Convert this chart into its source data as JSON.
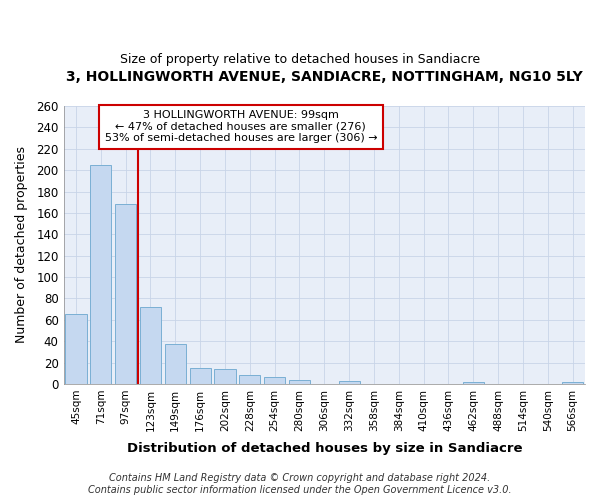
{
  "title": "3, HOLLINGWORTH AVENUE, SANDIACRE, NOTTINGHAM, NG10 5LY",
  "subtitle": "Size of property relative to detached houses in Sandiacre",
  "xlabel": "Distribution of detached houses by size in Sandiacre",
  "ylabel": "Number of detached properties",
  "categories": [
    "45sqm",
    "71sqm",
    "97sqm",
    "123sqm",
    "149sqm",
    "176sqm",
    "202sqm",
    "228sqm",
    "254sqm",
    "280sqm",
    "306sqm",
    "332sqm",
    "358sqm",
    "384sqm",
    "410sqm",
    "436sqm",
    "462sqm",
    "488sqm",
    "514sqm",
    "540sqm",
    "566sqm"
  ],
  "values": [
    65,
    205,
    168,
    72,
    37,
    15,
    14,
    8,
    6,
    4,
    0,
    3,
    0,
    0,
    0,
    0,
    2,
    0,
    0,
    0,
    2
  ],
  "bar_color": "#c5d8f0",
  "bar_edge_color": "#7aafd4",
  "grid_color": "#c8d4e8",
  "vline_x": 2.5,
  "vline_color": "#cc0000",
  "annotation_text": "3 HOLLINGWORTH AVENUE: 99sqm\n← 47% of detached houses are smaller (276)\n53% of semi-detached houses are larger (306) →",
  "annotation_box_color": "#ffffff",
  "annotation_box_edge": "#cc0000",
  "ylim": [
    0,
    260
  ],
  "yticks": [
    0,
    20,
    40,
    60,
    80,
    100,
    120,
    140,
    160,
    180,
    200,
    220,
    240,
    260
  ],
  "footer_text": "Contains HM Land Registry data © Crown copyright and database right 2024.\nContains public sector information licensed under the Open Government Licence v3.0.",
  "bg_color": "#ffffff",
  "plot_bg_color": "#e8eef8"
}
